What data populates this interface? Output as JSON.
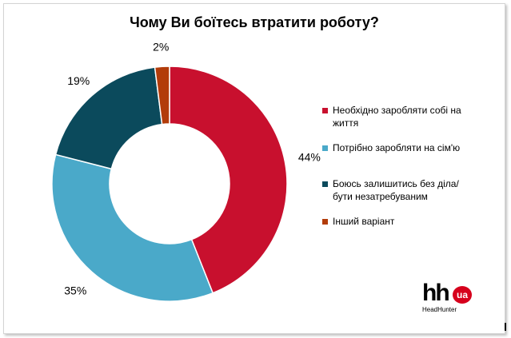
{
  "chart_data": {
    "type": "pie",
    "title": "Чому Ви боїтесь втратити роботу?",
    "variant": "donut",
    "legend_position": "right",
    "series": [
      {
        "label": "Необхідно заробляти собі на життя",
        "value": 44,
        "data_label": "44%",
        "color": "#c8102e"
      },
      {
        "label": "Потрібно заробляти на сім'ю",
        "value": 35,
        "data_label": "35%",
        "color": "#4aa9c9"
      },
      {
        "label": "Боюсь залишитись без діла/бути незатребуваним",
        "value": 19,
        "data_label": "19%",
        "color": "#0b4a5c"
      },
      {
        "label": "Інший варіант",
        "value": 2,
        "data_label": "2%",
        "color": "#b23c0a"
      }
    ]
  },
  "logo": {
    "mark": "hh",
    "badge": "ua",
    "sub": "HeadHunter"
  }
}
